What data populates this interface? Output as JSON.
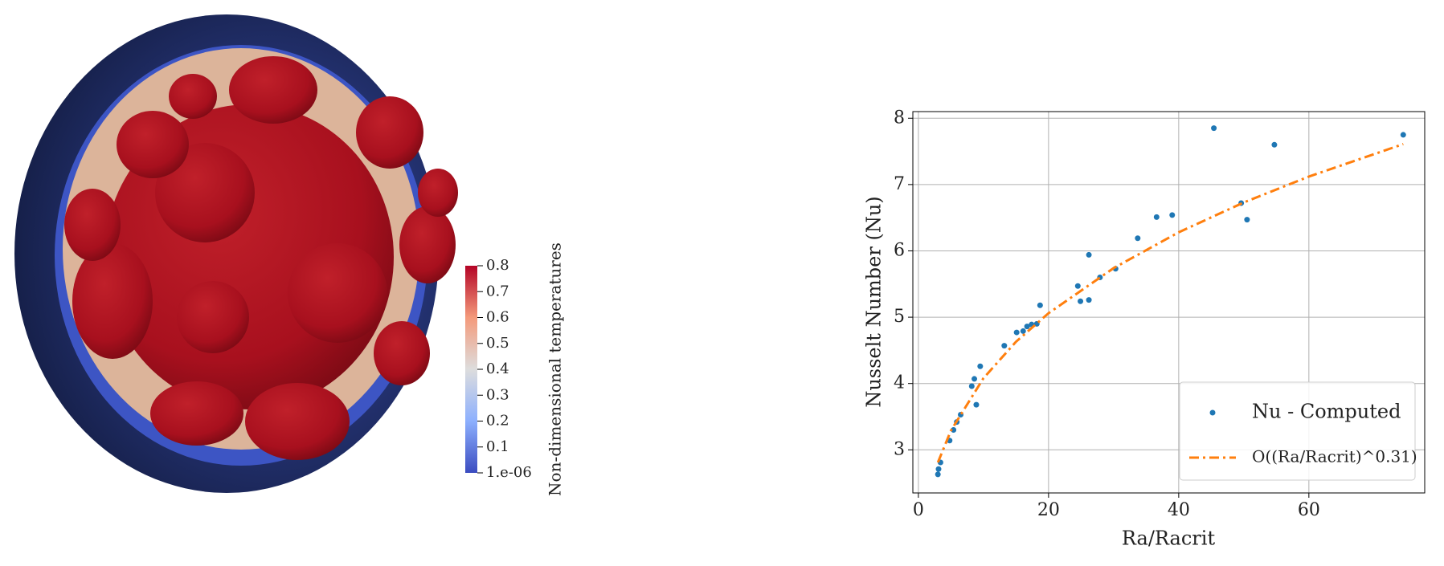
{
  "chart_data": {
    "type": "scatter",
    "xlabel": "Ra/Racrit",
    "ylabel": "Nusselt Number (Nu)",
    "xlim": [
      -0.85,
      77.8
    ],
    "ylim": [
      2.35,
      8.1
    ],
    "xticks": [
      0,
      20,
      40,
      60
    ],
    "yticks": [
      3,
      4,
      5,
      6,
      7,
      8
    ],
    "grid": true,
    "legend": "lower right",
    "series": [
      {
        "name": "Nu - Computed",
        "color": "#1f77b4",
        "marker": "o",
        "x": [
          3.0,
          3.1,
          3.4,
          4.8,
          5.4,
          5.9,
          6.5,
          8.2,
          8.6,
          8.9,
          9.5,
          13.2,
          15.1,
          16.1,
          16.7,
          17.4,
          18.2,
          18.7,
          24.5,
          24.9,
          26.2,
          26.2,
          27.9,
          30.3,
          33.7,
          36.6,
          39.0,
          45.4,
          49.6,
          50.5,
          54.7,
          74.5
        ],
        "values": [
          2.63,
          2.71,
          2.81,
          3.14,
          3.3,
          3.42,
          3.53,
          3.96,
          4.07,
          3.68,
          4.26,
          4.57,
          4.77,
          4.79,
          4.86,
          4.89,
          4.9,
          5.18,
          5.47,
          5.24,
          5.26,
          5.94,
          5.6,
          5.73,
          6.19,
          6.51,
          6.54,
          7.85,
          6.72,
          6.47,
          7.6,
          7.75
        ]
      },
      {
        "name": "O((Ra/Racrit)^0.31)",
        "color": "#ff7f0e",
        "linestyle": "-.",
        "x": [
          3,
          5,
          10,
          15,
          20,
          30,
          40,
          50,
          60,
          74.5
        ],
        "values": [
          2.81,
          3.29,
          4.08,
          4.63,
          5.06,
          5.74,
          6.28,
          6.73,
          7.12,
          7.61
        ]
      }
    ]
  },
  "colorbar": {
    "title": "Non-dimensional temperatures",
    "lim": [
      1e-06,
      0.8
    ],
    "ticks": [
      {
        "value": 1e-06,
        "label": "1.e-06"
      },
      0.1,
      0.2,
      0.3,
      0.4,
      0.5,
      0.6,
      0.7,
      0.8
    ]
  }
}
